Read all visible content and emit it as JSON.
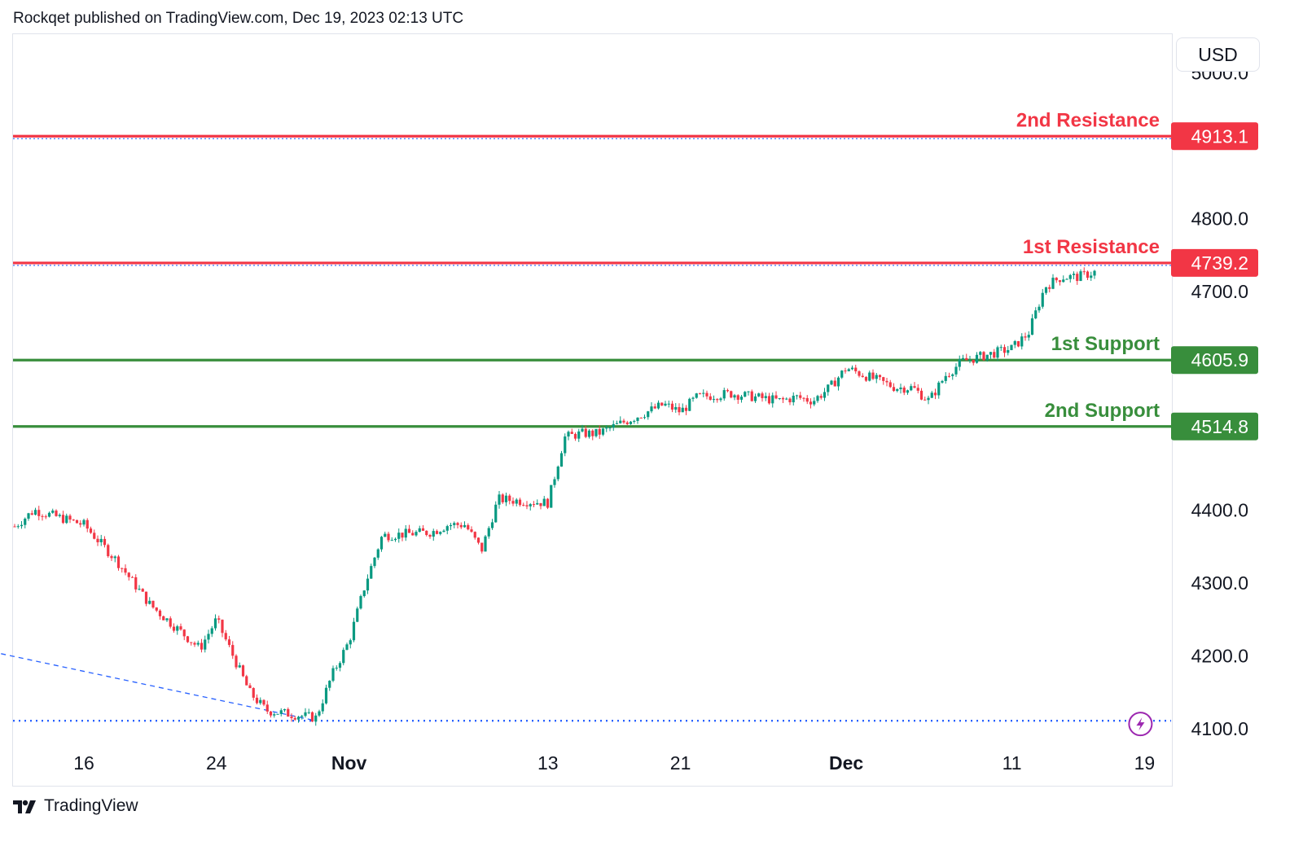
{
  "header": {
    "text": "Rockqet published on TradingView.com, Dec 19, 2023 02:13 UTC"
  },
  "currency": "USD",
  "footer": {
    "brand": "TradingView",
    "logo_icon": "tradingview-logo-icon"
  },
  "colors": {
    "resistance": "#f23645",
    "support": "#388e3c",
    "up": "#089981",
    "down": "#f23645",
    "dotted": "#2962ff"
  },
  "chart_data": {
    "type": "candlestick",
    "title": "",
    "ylabel": "",
    "xlabel": "",
    "ylim": [
      4072,
      5022
    ],
    "y_ticks": [
      {
        "value": 5000,
        "label": "5000.0"
      },
      {
        "value": 4800,
        "label": "4800.0"
      },
      {
        "value": 4700,
        "label": "4700.0"
      },
      {
        "value": 4400,
        "label": "4400.0"
      },
      {
        "value": 4300,
        "label": "4300.0"
      },
      {
        "value": 4200,
        "label": "4200.0"
      },
      {
        "value": 4100,
        "label": "4100.0"
      }
    ],
    "x_ticks": [
      {
        "date": "2023-10-16",
        "label": "16",
        "bold": false
      },
      {
        "date": "2023-10-24",
        "label": "24",
        "bold": false
      },
      {
        "date": "2023-11-01",
        "label": "Nov",
        "bold": true
      },
      {
        "date": "2023-11-13",
        "label": "13",
        "bold": false
      },
      {
        "date": "2023-11-21",
        "label": "21",
        "bold": false
      },
      {
        "date": "2023-12-01",
        "label": "Dec",
        "bold": true
      },
      {
        "date": "2023-12-11",
        "label": "11",
        "bold": false
      },
      {
        "date": "2023-12-19",
        "label": "19",
        "bold": false
      }
    ],
    "levels": [
      {
        "name": "2nd Resistance",
        "value": 4913.1,
        "label": "4913.1",
        "kind": "resistance"
      },
      {
        "name": "1st Resistance",
        "value": 4739.2,
        "label": "4739.2",
        "kind": "resistance"
      },
      {
        "name": "1st Support",
        "value": 4605.9,
        "label": "4605.9",
        "kind": "support"
      },
      {
        "name": "2nd Support",
        "value": 4514.8,
        "label": "4514.8",
        "kind": "support"
      }
    ],
    "low_marker_value": 4111,
    "trend_line": [
      [
        "2023-10-11",
        4203
      ],
      [
        "2023-10-30",
        4111
      ]
    ],
    "close_path": [
      [
        "2023-10-11",
        4362
      ],
      [
        "2023-10-13",
        4400
      ],
      [
        "2023-10-16",
        4380
      ],
      [
        "2023-10-18",
        4330
      ],
      [
        "2023-10-20",
        4270
      ],
      [
        "2023-10-23",
        4210
      ],
      [
        "2023-10-24",
        4250
      ],
      [
        "2023-10-25",
        4200
      ],
      [
        "2023-10-26",
        4150
      ],
      [
        "2023-10-27",
        4125
      ],
      [
        "2023-10-30",
        4115
      ],
      [
        "2023-10-31",
        4175
      ],
      [
        "2023-11-01",
        4220
      ],
      [
        "2023-11-02",
        4300
      ],
      [
        "2023-11-03",
        4365
      ],
      [
        "2023-11-06",
        4370
      ],
      [
        "2023-11-07",
        4380
      ],
      [
        "2023-11-08",
        4380
      ],
      [
        "2023-11-09",
        4345
      ],
      [
        "2023-11-10",
        4415
      ],
      [
        "2023-11-13",
        4410
      ],
      [
        "2023-11-14",
        4500
      ],
      [
        "2023-11-15",
        4505
      ],
      [
        "2023-11-16",
        4505
      ],
      [
        "2023-11-17",
        4515
      ],
      [
        "2023-11-20",
        4545
      ],
      [
        "2023-11-21",
        4535
      ],
      [
        "2023-11-22",
        4555
      ],
      [
        "2023-11-24",
        4560
      ],
      [
        "2023-11-27",
        4550
      ],
      [
        "2023-11-28",
        4555
      ],
      [
        "2023-11-29",
        4550
      ],
      [
        "2023-11-30",
        4568
      ],
      [
        "2023-12-01",
        4595
      ],
      [
        "2023-12-04",
        4568
      ],
      [
        "2023-12-05",
        4568
      ],
      [
        "2023-12-06",
        4550
      ],
      [
        "2023-12-07",
        4585
      ],
      [
        "2023-12-08",
        4604
      ],
      [
        "2023-12-11",
        4622
      ],
      [
        "2023-12-12",
        4643
      ],
      [
        "2023-12-13",
        4707
      ],
      [
        "2023-12-14",
        4720
      ],
      [
        "2023-12-15",
        4720
      ],
      [
        "2023-12-18",
        4740
      ],
      [
        "2023-12-19",
        4745
      ]
    ],
    "event_icon": "lightning-icon"
  }
}
